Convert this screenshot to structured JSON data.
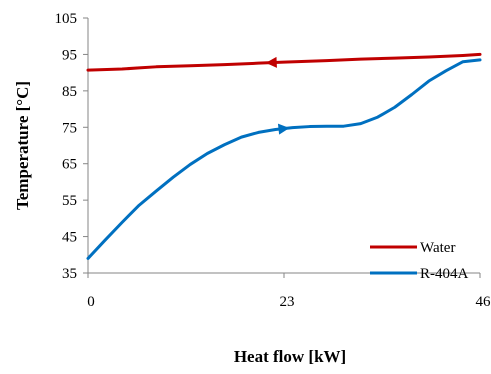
{
  "chart_data": {
    "type": "line",
    "xlabel": "Heat flow [kW]",
    "ylabel": "Temperature [°C]",
    "xlim": [
      0,
      46
    ],
    "ylim": [
      35,
      105
    ],
    "xticks": [
      0,
      23,
      46
    ],
    "xtick_labels": [
      "0",
      "23",
      "46"
    ],
    "yticks": [
      35,
      45,
      55,
      65,
      75,
      85,
      95,
      105
    ],
    "ytick_labels": [
      "35",
      "45",
      "55",
      "65",
      "75",
      "85",
      "95",
      "105"
    ],
    "grid": false,
    "legend_position": "bottom-right",
    "series": [
      {
        "name": "Water",
        "color": "#C00000",
        "arrow": "left",
        "arrow_at_x": 21.5,
        "x": [
          0,
          4,
          6,
          8,
          12,
          16,
          20,
          23,
          28,
          32,
          36,
          40,
          44,
          46
        ],
        "y": [
          90.7,
          91.0,
          91.3,
          91.6,
          91.9,
          92.2,
          92.6,
          92.9,
          93.3,
          93.7,
          94.0,
          94.3,
          94.7,
          95.0
        ]
      },
      {
        "name": "R-404A",
        "color": "#0070C0",
        "arrow": "right",
        "arrow_at_x": 23,
        "x": [
          0,
          2,
          4,
          6,
          8,
          10,
          12,
          14,
          16,
          18,
          20,
          22,
          24,
          26,
          28,
          30,
          32,
          34,
          36,
          38,
          40,
          42,
          44,
          46
        ],
        "y": [
          39.0,
          44.0,
          48.9,
          53.6,
          57.5,
          61.3,
          64.8,
          67.8,
          70.2,
          72.3,
          73.6,
          74.4,
          74.9,
          75.2,
          75.3,
          75.3,
          76.0,
          77.8,
          80.5,
          84.0,
          87.7,
          90.5,
          93.0,
          93.5
        ]
      }
    ]
  }
}
